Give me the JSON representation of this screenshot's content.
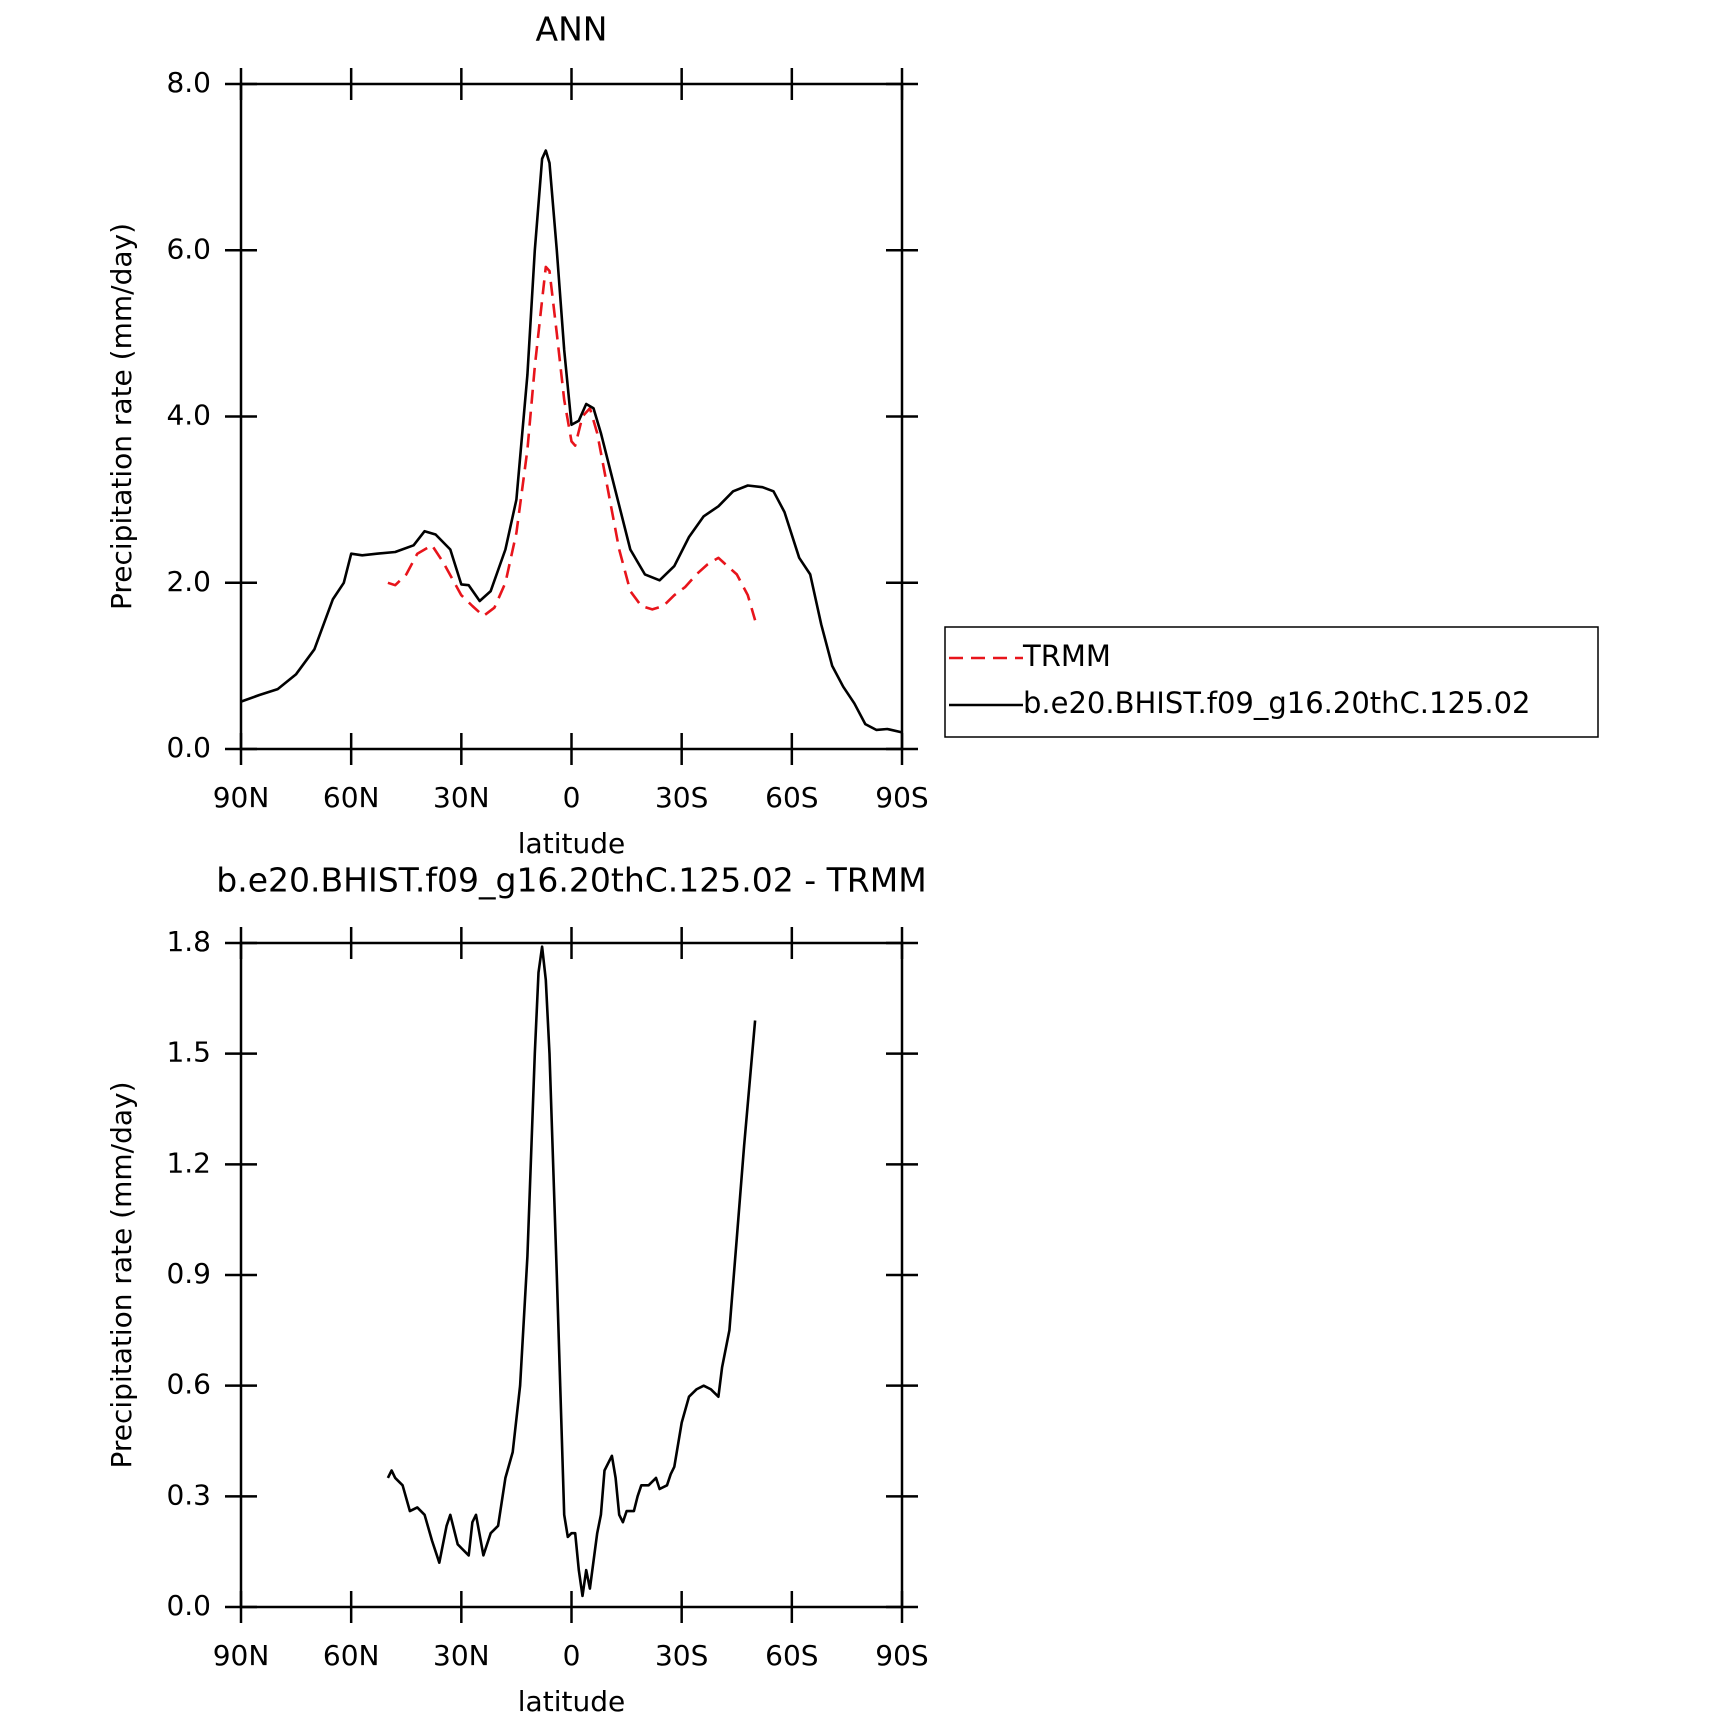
{
  "chart_data": [
    {
      "type": "line",
      "title": "ANN",
      "xlabel": "latitude",
      "ylabel": "Precipitation rate (mm/day)",
      "xlim": [
        90,
        -90
      ],
      "xticks": [
        {
          "value": 90,
          "label": "90N"
        },
        {
          "value": 60,
          "label": "60N"
        },
        {
          "value": 30,
          "label": "30N"
        },
        0,
        {
          "value": -30,
          "label": "30S"
        },
        {
          "value": -60,
          "label": "60S"
        },
        {
          "value": -90,
          "label": "90S"
        }
      ],
      "ylim": [
        0,
        8
      ],
      "yticks": [
        {
          "value": 0,
          "label": "0.0"
        },
        {
          "value": 2,
          "label": "2.0"
        },
        {
          "value": 4,
          "label": "4.0"
        },
        {
          "value": 6,
          "label": "6.0"
        },
        {
          "value": 8,
          "label": "8.0"
        }
      ],
      "legend": "right",
      "series": [
        {
          "name": "TRMM",
          "color": "#e8141b",
          "style": "dashed",
          "x": [
            50,
            48,
            45,
            42,
            38,
            35,
            30,
            27,
            24,
            21,
            18,
            15,
            12,
            10,
            8,
            7,
            6,
            4,
            2,
            0,
            -1,
            -3,
            -5,
            -7,
            -10,
            -13,
            -16,
            -19,
            -22,
            -25,
            -28,
            -31,
            -34,
            -37,
            -40,
            -42,
            -45,
            -48,
            -50
          ],
          "values": [
            2.0,
            1.97,
            2.1,
            2.35,
            2.45,
            2.25,
            1.85,
            1.72,
            1.6,
            1.7,
            2.0,
            2.6,
            3.6,
            4.6,
            5.4,
            5.8,
            5.75,
            5.0,
            4.2,
            3.7,
            3.65,
            4.0,
            4.1,
            3.8,
            3.1,
            2.4,
            1.9,
            1.72,
            1.68,
            1.72,
            1.85,
            1.95,
            2.1,
            2.22,
            2.3,
            2.22,
            2.1,
            1.85,
            1.55
          ]
        },
        {
          "name": "b.e20.BHIST.f09_g16.20thC.125.02",
          "color": "#000000",
          "style": "solid",
          "x": [
            90,
            85,
            80,
            75,
            70,
            65,
            62,
            60,
            57,
            53,
            48,
            43,
            40,
            37,
            33,
            30,
            28,
            25,
            22,
            18,
            15,
            12,
            10,
            8,
            7,
            6,
            4,
            2,
            0,
            -2,
            -4,
            -6,
            -8,
            -12,
            -16,
            -20,
            -24,
            -28,
            -32,
            -36,
            -40,
            -44,
            -48,
            -52,
            -55,
            -58,
            -62,
            -65,
            -68,
            -71,
            -74,
            -77,
            -80,
            -83,
            -86,
            -90
          ],
          "values": [
            0.57,
            0.65,
            0.72,
            0.9,
            1.2,
            1.8,
            2.0,
            2.35,
            2.33,
            2.35,
            2.37,
            2.45,
            2.62,
            2.58,
            2.4,
            1.98,
            1.97,
            1.78,
            1.9,
            2.4,
            3.0,
            4.5,
            6.0,
            7.1,
            7.2,
            7.05,
            6.0,
            4.8,
            3.9,
            3.95,
            4.15,
            4.1,
            3.8,
            3.1,
            2.4,
            2.1,
            2.03,
            2.2,
            2.55,
            2.8,
            2.92,
            3.1,
            3.17,
            3.15,
            3.1,
            2.85,
            2.3,
            2.1,
            1.5,
            1.0,
            0.75,
            0.55,
            0.3,
            0.23,
            0.24,
            0.2
          ]
        }
      ]
    },
    {
      "type": "line",
      "title": "b.e20.BHIST.f09_g16.20thC.125.02 - TRMM",
      "xlabel": "latitude",
      "ylabel": "Precipitation rate (mm/day)",
      "xlim": [
        90,
        -90
      ],
      "xticks": [
        {
          "value": 90,
          "label": "90N"
        },
        {
          "value": 60,
          "label": "60N"
        },
        {
          "value": 30,
          "label": "30N"
        },
        0,
        {
          "value": -30,
          "label": "30S"
        },
        {
          "value": -60,
          "label": "60S"
        },
        {
          "value": -90,
          "label": "90S"
        }
      ],
      "ylim": [
        0,
        1.8
      ],
      "yticks": [
        {
          "value": 0,
          "label": "0.0"
        },
        0.3,
        0.6,
        0.9,
        1.2,
        1.5,
        1.8
      ],
      "series": [
        {
          "color": "#000000",
          "style": "solid",
          "x": [
            50,
            49,
            48,
            46,
            44,
            42,
            40,
            38,
            36,
            34,
            33,
            31,
            30,
            28,
            27,
            26,
            24,
            22,
            20,
            18,
            16,
            14,
            12,
            10,
            9,
            8,
            7,
            6,
            4,
            2,
            1,
            0,
            -1,
            -2,
            -3,
            -4,
            -5,
            -7,
            -8,
            -9,
            -11,
            -12,
            -13,
            -14,
            -15,
            -17,
            -18,
            -19,
            -21,
            -23,
            -24,
            -26,
            -27,
            -28,
            -30,
            -32,
            -34,
            -36,
            -38,
            -40,
            -41,
            -43,
            -45,
            -47,
            -50
          ],
          "values": [
            0.35,
            0.37,
            0.35,
            0.33,
            0.26,
            0.27,
            0.25,
            0.18,
            0.12,
            0.22,
            0.25,
            0.17,
            0.16,
            0.14,
            0.23,
            0.25,
            0.14,
            0.2,
            0.22,
            0.35,
            0.42,
            0.6,
            0.95,
            1.5,
            1.72,
            1.79,
            1.7,
            1.5,
            0.9,
            0.25,
            0.19,
            0.2,
            0.2,
            0.1,
            0.03,
            0.1,
            0.05,
            0.2,
            0.25,
            0.37,
            0.41,
            0.35,
            0.25,
            0.23,
            0.26,
            0.26,
            0.3,
            0.33,
            0.33,
            0.35,
            0.32,
            0.33,
            0.36,
            0.38,
            0.5,
            0.57,
            0.59,
            0.6,
            0.59,
            0.57,
            0.65,
            0.75,
            1.0,
            1.25,
            1.59
          ]
        }
      ]
    }
  ]
}
